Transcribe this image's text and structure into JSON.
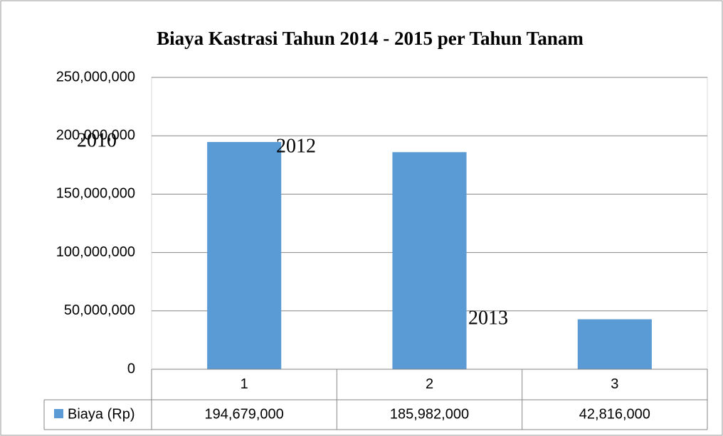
{
  "chart_data": {
    "type": "bar",
    "title": "Biaya Kastrasi Tahun 2014 - 2015 per  Tahun Tanam",
    "categories": [
      "1",
      "2",
      "3"
    ],
    "series": [
      {
        "name": "Biaya (Rp)",
        "color": "#5b9bd5",
        "values": [
          194679000,
          185982000,
          42816000
        ],
        "value_labels": [
          "194,679,000",
          "185,982,000",
          "42,816,000"
        ]
      }
    ],
    "ylim": [
      0,
      250000000
    ],
    "yticks": [
      0,
      {
        "value": 50000000,
        "label": "50,000,000"
      },
      {
        "value": 100000000,
        "label": "100,000,000"
      },
      {
        "value": 150000000,
        "label": "150,000,000"
      },
      {
        "value": 200000000,
        "label": "200,000,000"
      },
      {
        "value": 250000000,
        "label": "250,000,000"
      }
    ],
    "grid": true,
    "data_table": true,
    "annotations": [
      "2010",
      "2012",
      "2013"
    ]
  }
}
